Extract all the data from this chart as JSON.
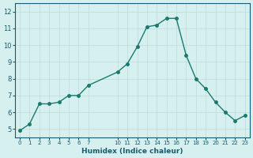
{
  "x": [
    0,
    1,
    2,
    3,
    4,
    5,
    6,
    7,
    10,
    11,
    12,
    13,
    14,
    15,
    16,
    17,
    18,
    19,
    20,
    21,
    22,
    23
  ],
  "y": [
    4.9,
    5.3,
    6.5,
    6.5,
    6.6,
    7.0,
    7.0,
    7.6,
    8.4,
    8.9,
    9.9,
    11.1,
    11.2,
    11.6,
    11.6,
    9.4,
    8.0,
    7.4,
    6.6,
    6.0,
    5.5,
    5.8
  ],
  "line_color": "#1a7a6e",
  "marker_color": "#1a7a6e",
  "bg_color": "#d6f0f0",
  "grid_color": "#c0d8d8",
  "xlabel": "Humidex (Indice chaleur)",
  "ylabel": "",
  "xlim": [
    -0.5,
    23.5
  ],
  "ylim": [
    4.5,
    12.5
  ],
  "yticks": [
    5,
    6,
    7,
    8,
    9,
    10,
    11,
    12
  ],
  "xticks": [
    0,
    1,
    2,
    3,
    4,
    5,
    6,
    7,
    10,
    11,
    12,
    13,
    14,
    15,
    16,
    17,
    18,
    19,
    20,
    21,
    22,
    23
  ],
  "xtick_labels": [
    "0",
    "1",
    "2",
    "3",
    "4",
    "5",
    "6",
    "7",
    "10",
    "11",
    "12",
    "13",
    "14",
    "15",
    "16",
    "17",
    "18",
    "19",
    "20",
    "21",
    "22",
    "23"
  ],
  "font_color": "#1a5a6e",
  "axis_color": "#1a5a6e"
}
